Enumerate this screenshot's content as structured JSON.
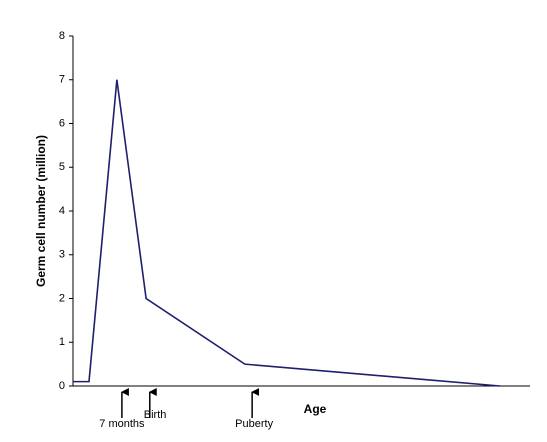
{
  "chart_data": {
    "type": "line",
    "y_label": "Germ cell number (million)",
    "x_label": "Age",
    "x": [
      0,
      3.5,
      9.6,
      16,
      37.6,
      93.4
    ],
    "series": [
      {
        "color": "#1f1f6e",
        "values": [
          0.1,
          0.1,
          7,
          2,
          0.5,
          0
        ]
      }
    ],
    "xlim": [
      0,
      100
    ],
    "ylim": [
      0,
      8
    ],
    "yticks": [
      0,
      1,
      2,
      3,
      4,
      5,
      6,
      7,
      8
    ],
    "annotations": [
      {
        "text": "7 months",
        "x": 10.7
      },
      {
        "text": "Birth",
        "x": 16.8
      },
      {
        "text": "Puberty",
        "x": 39.2
      }
    ]
  }
}
